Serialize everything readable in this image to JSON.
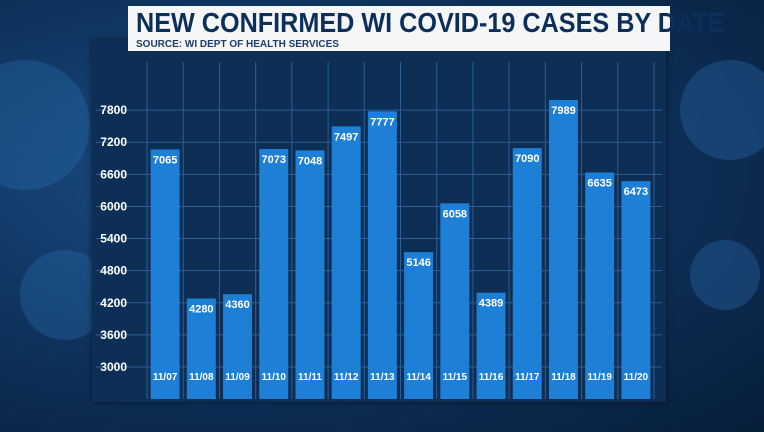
{
  "chart_data": {
    "type": "bar",
    "title": "NEW CONFIRMED WI COVID-19 CASES BY DATE",
    "subtitle": "SOURCE: WI DEPT OF HEALTH SERVICES",
    "categories": [
      "11/07",
      "11/08",
      "11/09",
      "11/10",
      "11/11",
      "11/12",
      "11/13",
      "11/14",
      "11/15",
      "11/16",
      "11/17",
      "11/18",
      "11/19",
      "11/20"
    ],
    "values": [
      7065,
      4280,
      4360,
      7073,
      7048,
      7497,
      7777,
      5146,
      6058,
      4389,
      7090,
      7989,
      6635,
      6473
    ],
    "yticks": [
      3000,
      3600,
      4200,
      4800,
      5400,
      6000,
      6600,
      7200,
      7800
    ],
    "ylim": [
      3000,
      8400
    ],
    "xlabel": "",
    "ylabel": "",
    "grid": true,
    "bar_color": "#1e7fd6",
    "label_color": "#ffffff",
    "title_bg_color": "#f4f6f8",
    "title_color": "#0c2f5a"
  }
}
